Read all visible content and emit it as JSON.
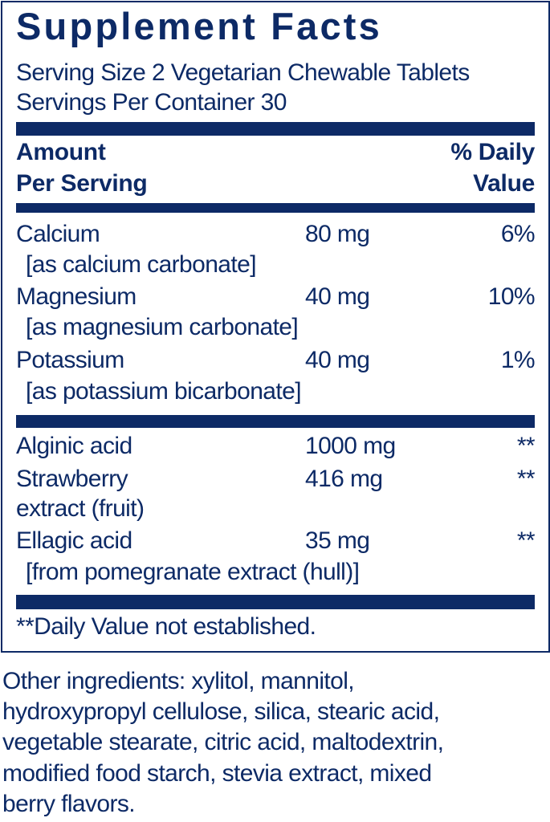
{
  "title": "Supplement Facts",
  "serving_size": "Serving Size 2 Vegetarian Chewable Tablets",
  "servings_per_container": "Servings Per Container 30",
  "header": {
    "amount_line1": "Amount",
    "amount_line2": "Per Serving",
    "dv_line1": "% Daily",
    "dv_line2": "Value"
  },
  "nutrients": [
    {
      "name": "Calcium",
      "source": "[as calcium carbonate]",
      "amount": "80 mg",
      "dv": "6%"
    },
    {
      "name": "Magnesium",
      "source": "[as magnesium carbonate]",
      "amount": "40 mg",
      "dv": "10%"
    },
    {
      "name": "Potassium",
      "source": "[as potassium bicarbonate]",
      "amount": "40 mg",
      "dv": "1%"
    }
  ],
  "others": [
    {
      "name": "Alginic acid",
      "amount": "1000 mg",
      "dv": "**"
    },
    {
      "name": "Strawberry",
      "name2": "extract (fruit)",
      "amount": "416 mg",
      "dv": "**"
    },
    {
      "name": "Ellagic acid",
      "source": "[from pomegranate extract (hull)]",
      "amount": "35 mg",
      "dv": "**"
    }
  ],
  "footnote": "**Daily Value not established.",
  "other_ingredients": [
    "Other ingredients: xylitol, mannitol,",
    "hydroxypropyl cellulose, silica, stearic acid,",
    "vegetable stearate, citric acid, maltodextrin,",
    "modified food starch, stevia extract, mixed",
    "berry flavors."
  ],
  "colors": {
    "ink": "#0d2a66",
    "background": "#ffffff"
  }
}
